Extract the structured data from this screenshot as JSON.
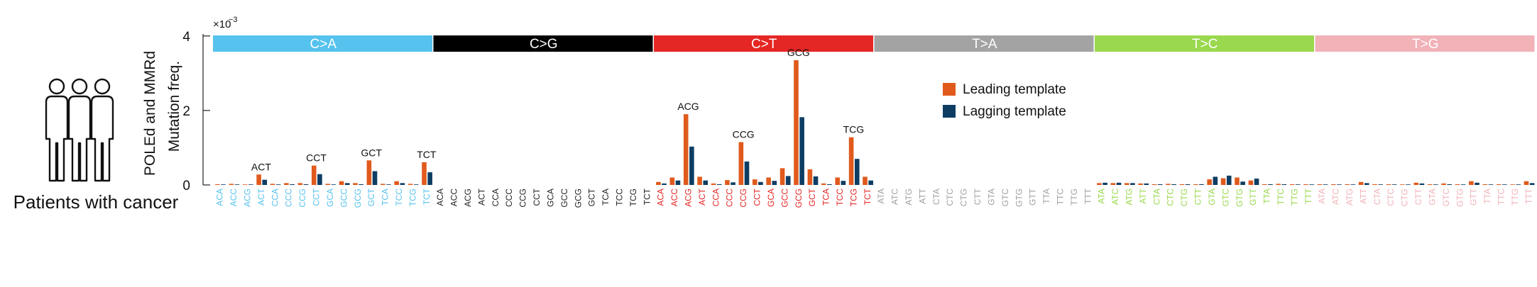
{
  "panel": {
    "caption": "Patients with cancer"
  },
  "icons": {
    "people": "three-people-icon"
  },
  "chart_data": {
    "type": "bar",
    "axis_multiplier": "×10",
    "axis_multiplier_exp": "−3",
    "ylabel_line1": "POLEd and MMRd",
    "ylabel_line2": "Mutation freq.",
    "ylim": [
      0,
      4.3
    ],
    "yticks": [
      0,
      2,
      4
    ],
    "grid": false,
    "legend_position": "right",
    "substitutions": [
      {
        "name": "C>A",
        "color": "#56c2ee",
        "text_color": "#ffffff"
      },
      {
        "name": "C>G",
        "color": "#000000",
        "text_color": "#ffffff"
      },
      {
        "name": "C>T",
        "color": "#e42624",
        "text_color": "#ffffff"
      },
      {
        "name": "T>A",
        "color": "#a3a3a3",
        "text_color": "#ffffff"
      },
      {
        "name": "T>C",
        "color": "#9ad84e",
        "text_color": "#ffffff"
      },
      {
        "name": "T>G",
        "color": "#f1b2b8",
        "text_color": "#ffffff"
      }
    ],
    "category_label_colors": [
      "#56c2ee",
      "#222222",
      "#e42624",
      "#a0a0a0",
      "#9ad84e",
      "#f1b2b8"
    ],
    "categories": [
      "ACA",
      "ACC",
      "ACG",
      "ACT",
      "CCA",
      "CCC",
      "CCG",
      "CCT",
      "GCA",
      "GCC",
      "GCG",
      "GCT",
      "TCA",
      "TCC",
      "TCG",
      "TCT",
      "ACA",
      "ACC",
      "ACG",
      "ACT",
      "CCA",
      "CCC",
      "CCG",
      "CCT",
      "GCA",
      "GCC",
      "GCG",
      "GCT",
      "TCA",
      "TCC",
      "TCG",
      "TCT",
      "ACA",
      "ACC",
      "ACG",
      "ACT",
      "CCA",
      "CCC",
      "CCG",
      "CCT",
      "GCA",
      "GCC",
      "GCG",
      "GCT",
      "TCA",
      "TCC",
      "TCG",
      "TCT",
      "ATA",
      "ATC",
      "ATG",
      "ATT",
      "CTA",
      "CTC",
      "CTG",
      "CTT",
      "GTA",
      "GTC",
      "GTG",
      "GTT",
      "TTA",
      "TTC",
      "TTG",
      "TTT",
      "ATA",
      "ATC",
      "ATG",
      "ATT",
      "CTA",
      "CTC",
      "CTG",
      "CTT",
      "GTA",
      "GTC",
      "GTG",
      "GTT",
      "TTA",
      "TTC",
      "TTG",
      "TTT",
      "ATA",
      "ATC",
      "ATG",
      "ATT",
      "CTA",
      "CTC",
      "CTG",
      "CTT",
      "GTA",
      "GTC",
      "GTG",
      "GTT",
      "TTA",
      "TTC",
      "TTG",
      "TTT"
    ],
    "series": [
      {
        "name": "Leading template",
        "color": "#e05a1c",
        "values": [
          0.02,
          0.03,
          0.01,
          0.28,
          0.03,
          0.05,
          0.05,
          0.52,
          0.03,
          0.1,
          0.05,
          0.66,
          0.03,
          0.1,
          0.03,
          0.61,
          0,
          0,
          0,
          0,
          0,
          0,
          0,
          0,
          0,
          0,
          0,
          0,
          0,
          0,
          0,
          0,
          0.08,
          0.2,
          1.9,
          0.22,
          0.04,
          0.13,
          1.15,
          0.15,
          0.2,
          0.45,
          3.35,
          0.42,
          0.04,
          0.2,
          1.28,
          0.22,
          0,
          0,
          0,
          0,
          0,
          0,
          0,
          0,
          0,
          0,
          0,
          0,
          0,
          0,
          0,
          0,
          0.05,
          0.05,
          0.05,
          0.04,
          0.02,
          0.03,
          0.02,
          0.02,
          0.15,
          0.18,
          0.2,
          0.12,
          0.02,
          0.03,
          0.02,
          0.02,
          0.02,
          0.02,
          0.02,
          0.08,
          0.02,
          0.02,
          0.01,
          0.06,
          0.02,
          0.04,
          0.02,
          0.1,
          0.02,
          0.02,
          0.01,
          0.1
        ]
      },
      {
        "name": "Lagging template",
        "color": "#0e3d63",
        "values": [
          0.01,
          0.01,
          0.01,
          0.14,
          0.01,
          0.02,
          0.02,
          0.29,
          0.01,
          0.05,
          0.02,
          0.37,
          0.01,
          0.05,
          0.01,
          0.34,
          0,
          0,
          0,
          0,
          0,
          0,
          0,
          0,
          0,
          0,
          0,
          0,
          0,
          0,
          0,
          0,
          0.04,
          0.12,
          1.03,
          0.12,
          0.02,
          0.07,
          0.63,
          0.08,
          0.11,
          0.24,
          1.82,
          0.23,
          0.02,
          0.11,
          0.7,
          0.12,
          0,
          0,
          0,
          0,
          0,
          0,
          0,
          0,
          0,
          0,
          0,
          0,
          0,
          0,
          0,
          0,
          0.06,
          0.06,
          0.05,
          0.04,
          0.02,
          0.02,
          0.02,
          0.02,
          0.22,
          0.25,
          0.09,
          0.17,
          0.02,
          0.02,
          0.01,
          0.01,
          0.01,
          0.01,
          0.01,
          0.05,
          0.01,
          0.01,
          0.01,
          0.04,
          0.01,
          0.02,
          0.01,
          0.06,
          0.01,
          0.01,
          0.01,
          0.05
        ]
      }
    ],
    "annotations": [
      {
        "index": 3,
        "text": "ACT"
      },
      {
        "index": 7,
        "text": "CCT"
      },
      {
        "index": 11,
        "text": "GCT"
      },
      {
        "index": 15,
        "text": "TCT"
      },
      {
        "index": 34,
        "text": "ACG"
      },
      {
        "index": 38,
        "text": "CCG"
      },
      {
        "index": 42,
        "text": "GCG"
      },
      {
        "index": 46,
        "text": "TCG"
      }
    ]
  }
}
